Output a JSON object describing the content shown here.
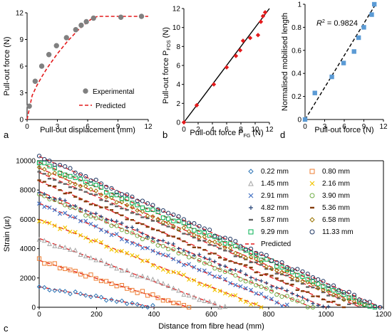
{
  "chart_data": [
    {
      "panel": "a",
      "type": "scatter",
      "xlabel": "Pull-out displacement (mm)",
      "ylabel": "Pull-out force (N)",
      "xlim": [
        0,
        12
      ],
      "ylim": [
        0,
        12
      ],
      "xticks": [
        "0",
        "3",
        "6",
        "9",
        "12"
      ],
      "yticks": [
        "0",
        "3",
        "6",
        "9",
        "12"
      ],
      "series": [
        {
          "name": "Experimental",
          "color": "#808080",
          "style": "point",
          "x": [
            0.22,
            0.8,
            1.45,
            2.16,
            2.91,
            3.9,
            4.82,
            5.36,
            5.87,
            6.58,
            9.29,
            11.33
          ],
          "y": [
            1.5,
            4.3,
            6.0,
            7.3,
            8.3,
            9.2,
            10.1,
            10.6,
            11.0,
            11.4,
            11.5,
            11.6
          ]
        },
        {
          "name": "Predicted",
          "color": "#e41a1c",
          "style": "dashed",
          "x": [
            0,
            0.5,
            1,
            1.5,
            2,
            2.5,
            3,
            3.5,
            4,
            4.5,
            5,
            5.5,
            6,
            6.5,
            7,
            12
          ],
          "y": [
            0,
            2.7,
            3.9,
            4.9,
            5.8,
            6.6,
            7.4,
            8.1,
            8.8,
            9.4,
            10.0,
            10.5,
            11.0,
            11.4,
            11.6,
            11.6
          ]
        }
      ],
      "legend_position": "bottom-right"
    },
    {
      "panel": "b",
      "type": "scatter",
      "xlabel_main": "Pull-out force P",
      "xlabel_sub": "FG",
      "xlabel_unit": " (N)",
      "ylabel_main": "Pull-out force P",
      "ylabel_sub": "FOS",
      "ylabel_unit": " (N)",
      "xlim": [
        0,
        12
      ],
      "ylim": [
        0,
        12
      ],
      "xticks": [
        "0",
        "2",
        "4",
        "6",
        "8",
        "10",
        "12"
      ],
      "yticks": [
        "0",
        "2",
        "4",
        "6",
        "8",
        "10",
        "12"
      ],
      "series": [
        {
          "color": "#e41a1c",
          "style": "diamond",
          "x": [
            0,
            1.8,
            4.2,
            6.0,
            7.3,
            7.9,
            8.3,
            9.3,
            10.4,
            10.8,
            11.1,
            11.4
          ],
          "y": [
            0,
            1.8,
            4.0,
            5.8,
            7.0,
            7.6,
            8.6,
            8.9,
            9.2,
            10.6,
            11.2,
            11.6
          ]
        },
        {
          "color": "#000000",
          "style": "line",
          "x": [
            0,
            12
          ],
          "y": [
            0,
            12
          ]
        }
      ]
    },
    {
      "panel": "d",
      "type": "scatter",
      "xlabel": "Pull-out force (N)",
      "ylabel": "Normalised  mobilised length",
      "xlim": [
        0,
        12
      ],
      "ylim": [
        0,
        1
      ],
      "xticks": [
        "0",
        "3",
        "6",
        "9",
        "12"
      ],
      "yticks": [
        "0",
        "0.2",
        "0.4",
        "0.6",
        "0.8",
        "1"
      ],
      "annotation_main": "R",
      "annotation_sup": "2",
      "annotation_rest": " = 0.9824",
      "series": [
        {
          "color": "#5b9bd5",
          "style": "square",
          "x": [
            0,
            1.5,
            4.1,
            5.9,
            7.5,
            8.2,
            9.0,
            10.2,
            10.6
          ],
          "y": [
            0,
            0.23,
            0.37,
            0.49,
            0.59,
            0.71,
            0.8,
            0.91,
            1.0
          ]
        },
        {
          "color": "#000000",
          "style": "dashed",
          "x": [
            0,
            10.8
          ],
          "y": [
            0,
            1.0
          ]
        }
      ]
    },
    {
      "panel": "c",
      "type": "scatter",
      "xlabel": "Distance from fibre head (mm)",
      "ylabel": "Strain (με)",
      "xlim": [
        0,
        1200
      ],
      "ylim": [
        0,
        10000
      ],
      "xticks": [
        "0",
        "200",
        "400",
        "600",
        "800",
        "1000",
        "1200"
      ],
      "yticks": [
        "0",
        "2000",
        "4000",
        "6000",
        "8000",
        "10000"
      ],
      "legend_position": "top-right",
      "series": [
        {
          "name": "0.22 mm",
          "color": "#2e75b6",
          "marker": "diamond",
          "x0": 1400,
          "x1": 400
        },
        {
          "name": "0.80 mm",
          "color": "#ed7d31",
          "marker": "square",
          "x0": 3200,
          "x1": 520
        },
        {
          "name": "1.45 mm",
          "color": "#a5a5a5",
          "marker": "triangle",
          "x0": 4700,
          "x1": 640
        },
        {
          "name": "2.16 mm",
          "color": "#f2c400",
          "marker": "x",
          "x0": 6000,
          "x1": 780
        },
        {
          "name": "2.91 mm",
          "color": "#4472c4",
          "marker": "x",
          "x0": 7100,
          "x1": 870
        },
        {
          "name": "3.90 mm",
          "color": "#70ad47",
          "marker": "circle",
          "x0": 7700,
          "x1": 950
        },
        {
          "name": "4.82 mm",
          "color": "#264478",
          "marker": "plus",
          "x0": 7900,
          "x1": 1000
        },
        {
          "name": "5.36 mm",
          "color": "#843c0c",
          "marker": "dash",
          "x0": 8600,
          "x1": 1060
        },
        {
          "name": "5.87 mm",
          "color": "#636363",
          "marker": "dash",
          "x0": 9200,
          "x1": 1120
        },
        {
          "name": "6.58 mm",
          "color": "#997300",
          "marker": "diamond",
          "x0": 9500,
          "x1": 1140
        },
        {
          "name": "9.29 mm",
          "color": "#00b050",
          "marker": "square",
          "x0": 9900,
          "x1": 1170
        },
        {
          "name": "11.33 mm",
          "color": "#203864",
          "marker": "circle",
          "x0": 10300,
          "x1": 1190
        },
        {
          "name": "Predicted",
          "color": "#e41a1c",
          "marker": "dashed-line"
        }
      ]
    }
  ],
  "panel_labels": {
    "a": "a",
    "b": "b",
    "c": "c",
    "d": "d"
  }
}
